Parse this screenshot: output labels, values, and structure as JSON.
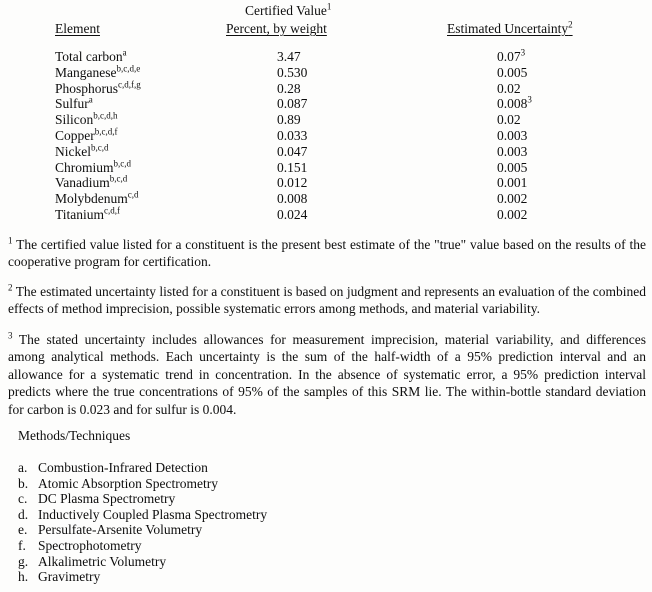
{
  "colors": {
    "paper": "#fdfdfc",
    "ink": "#0e0e0e"
  },
  "table": {
    "header": {
      "col1": "Element",
      "col2_line1": "Certified Value",
      "col2_line1_sup": "1",
      "col2_line2": "Percent, by weight",
      "col3": "Estimated Uncertainty",
      "col3_sup": "2"
    },
    "rows": [
      {
        "element": "Total carbon",
        "element_sup": "a",
        "value": "3.47",
        "uncertainty": "0.07",
        "uncertainty_sup": "3"
      },
      {
        "element": "Manganese",
        "element_sup": "b,c,d,e",
        "value": "0.530",
        "uncertainty": "0.005",
        "uncertainty_sup": ""
      },
      {
        "element": "Phosphorus",
        "element_sup": "c,d,f,g",
        "value": "0.28",
        "uncertainty": "0.02",
        "uncertainty_sup": ""
      },
      {
        "element": "Sulfur",
        "element_sup": "a",
        "value": "0.087",
        "uncertainty": "0.008",
        "uncertainty_sup": "3"
      },
      {
        "element": "Silicon",
        "element_sup": "b,c,d,h",
        "value": "0.89",
        "uncertainty": "0.02",
        "uncertainty_sup": ""
      },
      {
        "element": "Copper",
        "element_sup": "b,c,d,f",
        "value": "0.033",
        "uncertainty": "0.003",
        "uncertainty_sup": ""
      },
      {
        "element": "Nickel",
        "element_sup": "b,c,d",
        "value": "0.047",
        "uncertainty": "0.003",
        "uncertainty_sup": ""
      },
      {
        "element": "Chromium",
        "element_sup": "b,c,d",
        "value": "0.151",
        "uncertainty": "0.005",
        "uncertainty_sup": ""
      },
      {
        "element": "Vanadium",
        "element_sup": "b,c,d",
        "value": "0.012",
        "uncertainty": "0.001",
        "uncertainty_sup": ""
      },
      {
        "element": "Molybdenum",
        "element_sup": "c,d",
        "value": "0.008",
        "uncertainty": "0.002",
        "uncertainty_sup": ""
      },
      {
        "element": "Titanium",
        "element_sup": "c,d,f",
        "value": "0.024",
        "uncertainty": "0.002",
        "uncertainty_sup": ""
      }
    ]
  },
  "footnotes": [
    {
      "marker": "1",
      "text": "The certified value listed for a constituent is the present best estimate of the \"true\" value based on the results of the cooperative program for certification."
    },
    {
      "marker": "2",
      "text": "The estimated uncertainty listed for a constituent is based on judgment and represents an evaluation of the combined effects of method imprecision, possible systematic errors among methods, and material variability."
    },
    {
      "marker": "3",
      "text": "The stated uncertainty includes allowances for measurement imprecision, material variability, and differences among analytical methods.  Each uncertainty is the sum of the half-width of a 95% prediction interval and an allowance for a systematic trend in concentration.  In the absence of systematic error, a 95% prediction interval predicts where the true concentrations of 95% of the samples of this SRM lie.  The within-bottle standard deviation for carbon is 0.023 and for sulfur is 0.004."
    }
  ],
  "methods": {
    "heading": "Methods/Techniques",
    "items": [
      {
        "letter": "a.",
        "text": "Combustion-Infrared Detection"
      },
      {
        "letter": "b.",
        "text": "Atomic Absorption Spectrometry"
      },
      {
        "letter": "c.",
        "text": "DC Plasma Spectrometry"
      },
      {
        "letter": "d.",
        "text": "Inductively Coupled Plasma Spectrometry"
      },
      {
        "letter": "e.",
        "text": "Persulfate-Arsenite Volumetry"
      },
      {
        "letter": "f.",
        "text": "Spectrophotometry"
      },
      {
        "letter": "g.",
        "text": "Alkalimetric Volumetry"
      },
      {
        "letter": "h.",
        "text": "Gravimetry"
      }
    ]
  }
}
